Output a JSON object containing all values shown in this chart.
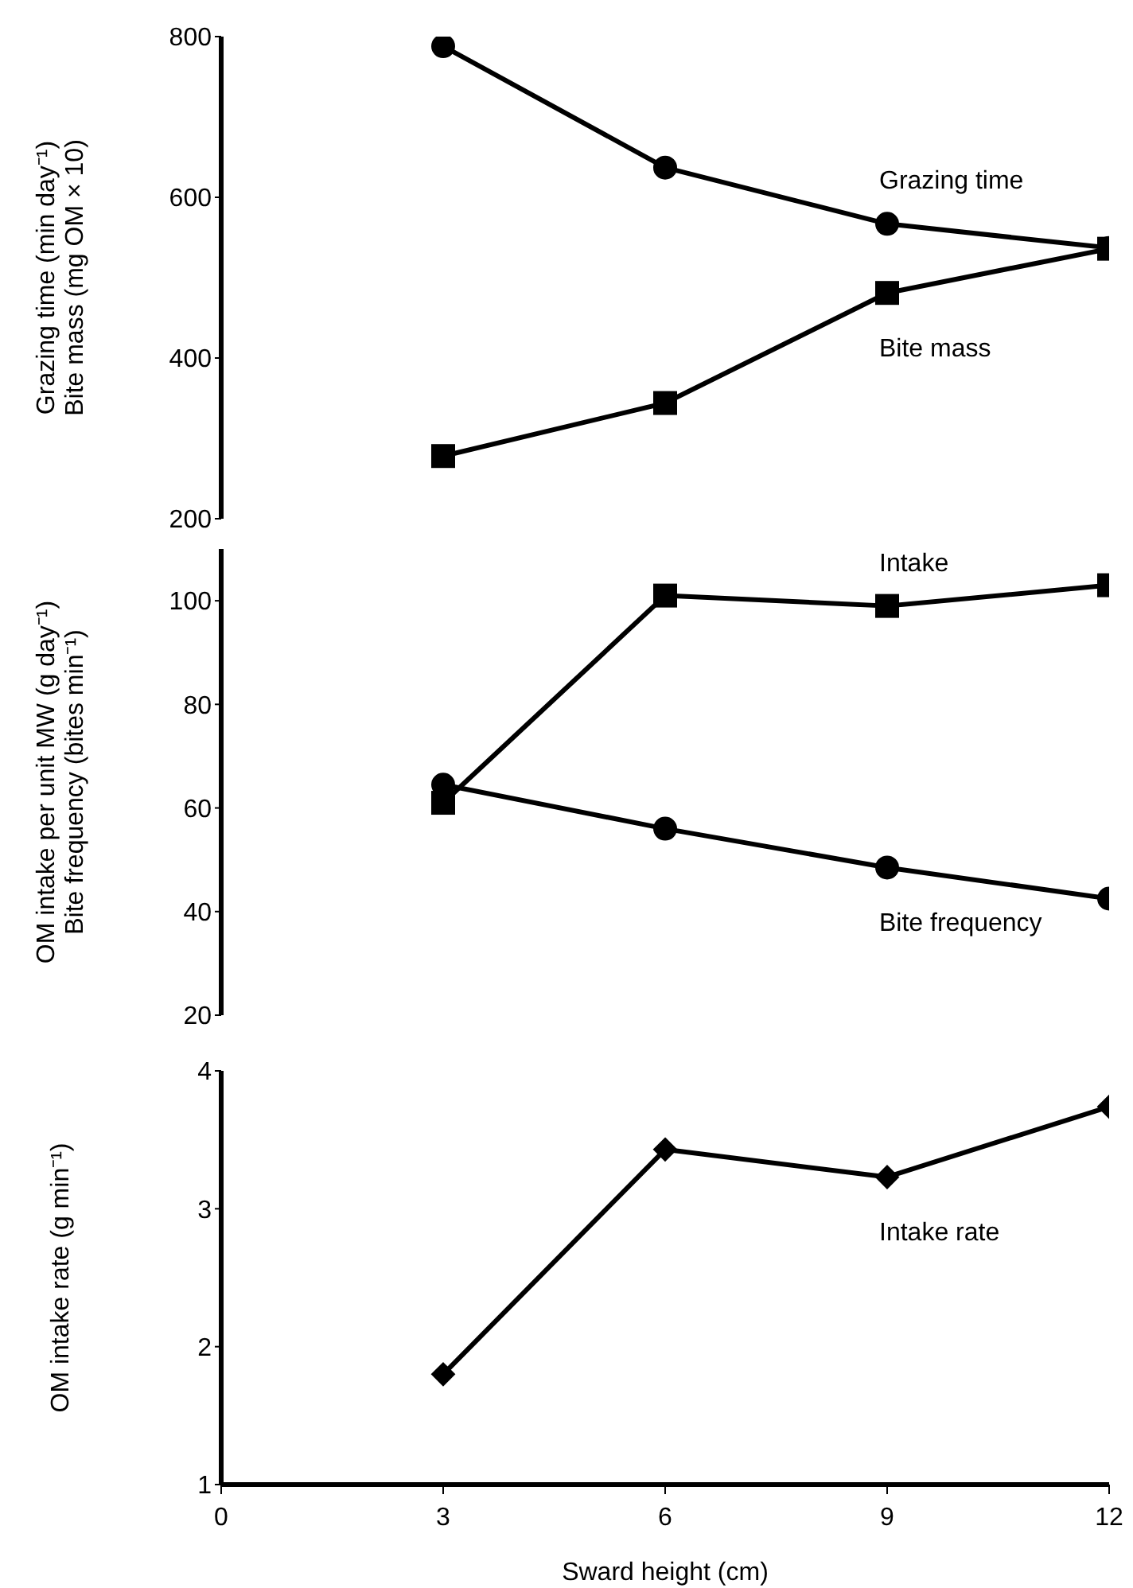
{
  "chart_data": [
    {
      "type": "line",
      "x": [
        3,
        6,
        9,
        12
      ],
      "ylabel": "Grazing time (min day⁻¹)\nBite mass (mg OM × 10)",
      "xlim": [
        0,
        12
      ],
      "ylim": [
        200,
        800
      ],
      "yticks": [
        200,
        400,
        600,
        800
      ],
      "tick_labels": "y",
      "grid": false,
      "legend": false,
      "line_style": "solid",
      "series": [
        {
          "name": "Grazing time",
          "color": "#000000",
          "marker": "circle",
          "values": [
            788,
            637,
            567,
            537
          ]
        },
        {
          "name": "Bite mass",
          "color": "#000000",
          "marker": "square",
          "values": [
            278,
            344,
            481,
            536
          ]
        }
      ]
    },
    {
      "type": "line",
      "x": [
        3,
        6,
        9,
        12
      ],
      "ylabel": "OM intake per unit MW (g day⁻¹)\nBite frequency (bites min⁻¹)",
      "xlim": [
        0,
        12
      ],
      "ylim": [
        20,
        110
      ],
      "yticks": [
        20,
        40,
        60,
        80,
        100
      ],
      "tick_labels": "y",
      "grid": false,
      "legend": false,
      "line_style": "solid",
      "series": [
        {
          "name": "Intake",
          "color": "#000000",
          "marker": "square",
          "values": [
            61,
            101,
            99,
            103
          ]
        },
        {
          "name": "Bite frequency",
          "color": "#000000",
          "marker": "circle",
          "values": [
            64.5,
            56,
            48.5,
            42.5
          ]
        }
      ]
    },
    {
      "type": "line",
      "x": [
        3,
        6,
        9,
        12
      ],
      "xlabel": "Sward height (cm)",
      "ylabel": "OM intake rate (g min⁻¹)",
      "xlim": [
        0,
        12
      ],
      "xticks": [
        0,
        3,
        6,
        9,
        12
      ],
      "ylim": [
        1,
        4
      ],
      "yticks": [
        1,
        2,
        3,
        4
      ],
      "grid": false,
      "legend": false,
      "line_style": "solid",
      "series": [
        {
          "name": "Intake rate",
          "color": "#000000",
          "marker": "diamond",
          "values": [
            1.8,
            3.43,
            3.23,
            3.74
          ]
        }
      ]
    }
  ]
}
